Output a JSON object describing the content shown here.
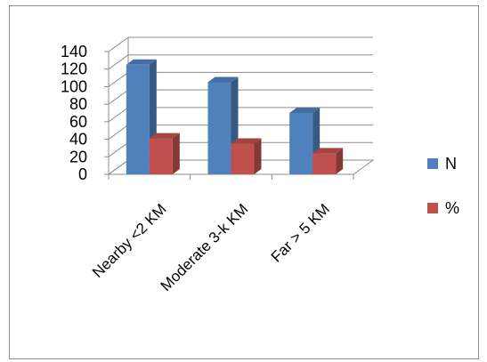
{
  "chart_data": {
    "type": "bar",
    "style": "3d-clustered-column",
    "categories": [
      "Nearby <2 KM",
      "Moderate 3-k KM",
      "Far > 5 KM"
    ],
    "series": [
      {
        "name": "N",
        "values": [
          125,
          105,
          70
        ],
        "color": "#4F81BD"
      },
      {
        "name": "%",
        "values": [
          41,
          35,
          24
        ],
        "color": "#C0504D"
      }
    ],
    "ylim": [
      0,
      140
    ],
    "yticks": [
      0,
      20,
      40,
      60,
      80,
      100,
      120,
      140
    ],
    "grid": true,
    "legend": "right",
    "title": "",
    "xlabel": "",
    "ylabel": ""
  }
}
